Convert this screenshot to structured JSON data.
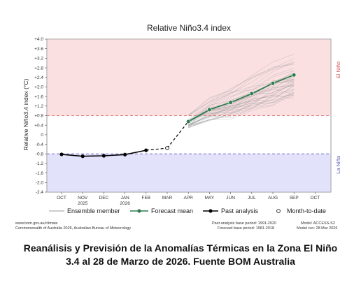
{
  "chart_data": {
    "type": "line",
    "title": "Relative Niño3.4 index",
    "ylabel": "Relative Niño3.4 index (°C)",
    "ylim": [
      -2.4,
      4.0
    ],
    "yticks": [
      "+4.0",
      "+3.6",
      "+3.2",
      "+2.8",
      "+2.4",
      "+2.0",
      "+1.6",
      "+1.2",
      "+0.8",
      "+0.4",
      "0",
      "-0.4",
      "-0.8",
      "-1.2",
      "-1.6",
      "-2.0",
      "-2.4"
    ],
    "categories": [
      "OCT",
      "NOV",
      "DEC",
      "JAN",
      "FEB",
      "MAR",
      "APR",
      "MAY",
      "JUN",
      "JUL",
      "AUG",
      "SEP",
      "OCT"
    ],
    "category_sublabels": [
      "",
      "2025",
      "",
      "2026",
      "",
      "",
      "",
      "",
      "",
      "",
      "",
      "",
      ""
    ],
    "thresholds": {
      "el_nino": 0.8,
      "la_nina": -0.8
    },
    "region_labels": {
      "el_nino": "El Niño",
      "la_nina": "La Niña"
    },
    "series": [
      {
        "name": "Past analysis",
        "x": [
          "OCT",
          "NOV",
          "DEC",
          "JAN",
          "FEB"
        ],
        "values": [
          -0.82,
          -0.9,
          -0.88,
          -0.83,
          -0.65
        ]
      },
      {
        "name": "Month-to-date",
        "x": [
          "MAR"
        ],
        "values": [
          -0.56
        ]
      },
      {
        "name": "Forecast mean",
        "x": [
          "APR",
          "MAY",
          "JUN",
          "JUL",
          "AUG",
          "SEP"
        ],
        "values": [
          0.55,
          1.05,
          1.35,
          1.72,
          2.15,
          2.5
        ]
      }
    ],
    "ensemble": {
      "name": "Ensemble member",
      "x": [
        "APR",
        "MAY",
        "JUN",
        "JUL",
        "AUG",
        "SEP"
      ],
      "spread": [
        0.35,
        0.55,
        0.7,
        0.85,
        1.0,
        1.15
      ],
      "members": 40
    },
    "legend": {
      "placement": "bottom",
      "items": [
        "Ensemble member",
        "Forecast mean",
        "Past analysis",
        "Month-to-date"
      ]
    },
    "colors": {
      "el_nino_bg": "#fbe0e2",
      "la_nina_bg": "#e2e2fb",
      "el_nino_line": "#e08080",
      "la_nina_line": "#6a6ac8",
      "el_nino_text": "#d05050",
      "la_nina_text": "#6060c0",
      "ensemble": "#9a9a9a",
      "forecast": "#2e7d50",
      "past": "#000000"
    }
  },
  "footer": {
    "left_line1": "www.bom.gov.au/climate",
    "left_line2": "Commonwealth of Australia 2026, Australian Bureau of Meteorology",
    "mid_line1": "Past analysis base period: 1991-2020",
    "mid_line2": "Forecast base period: 1981-2018",
    "right_line1": "Model: ACCESS-S2",
    "right_line2": "Model run: 28 Mar 2026"
  },
  "caption": {
    "line1": "Reanálisis y Previsión de la Anomalías Térmicas en la Zona El Niño",
    "line2": "3.4  al 28 de Marzo de 2026. Fuente BOM Australia"
  }
}
